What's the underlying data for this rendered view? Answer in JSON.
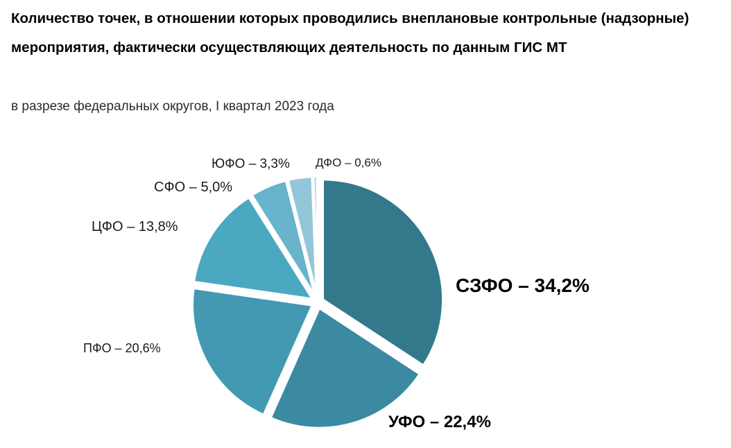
{
  "header": {
    "title": "Количество точек, в отношении которых проводились внеплановые контрольные (надзорные) мероприятия, фактически осуществляющих деятельность по данным ГИС МТ",
    "subtitle": "в разрезе федеральных округов, I квартал 2023 года"
  },
  "chart_data": {
    "type": "pie",
    "title": "Количество точек, в отношении которых проводились внеплановые контрольные (надзорные) мероприятия, фактически осуществляющих деятельность по данным ГИС МТ",
    "subtitle": "в разрезе федеральных округов, I квартал 2023 года",
    "slices": [
      {
        "name": "СЗФО",
        "value": 34.2,
        "label": "СЗФО – 34,2%",
        "color": "#33788b"
      },
      {
        "name": "УФО",
        "value": 22.4,
        "label": "УФО – 22,4%",
        "color": "#3b8aa1"
      },
      {
        "name": "ПФО",
        "value": 20.6,
        "label": "ПФО – 20,6%",
        "color": "#4299b1"
      },
      {
        "name": "ЦФО",
        "value": 13.8,
        "label": "ЦФО – 13,8%",
        "color": "#4ba8c1"
      },
      {
        "name": "СФО",
        "value": 5.0,
        "label": "СФО – 5,0%",
        "color": "#67b4cc"
      },
      {
        "name": "ЮФО",
        "value": 3.3,
        "label": "ЮФО – 3,3%",
        "color": "#93c6d8"
      },
      {
        "name": "ДФО",
        "value": 0.6,
        "label": "ДФО – 0,6%",
        "color": "#b4d8e4"
      }
    ]
  }
}
